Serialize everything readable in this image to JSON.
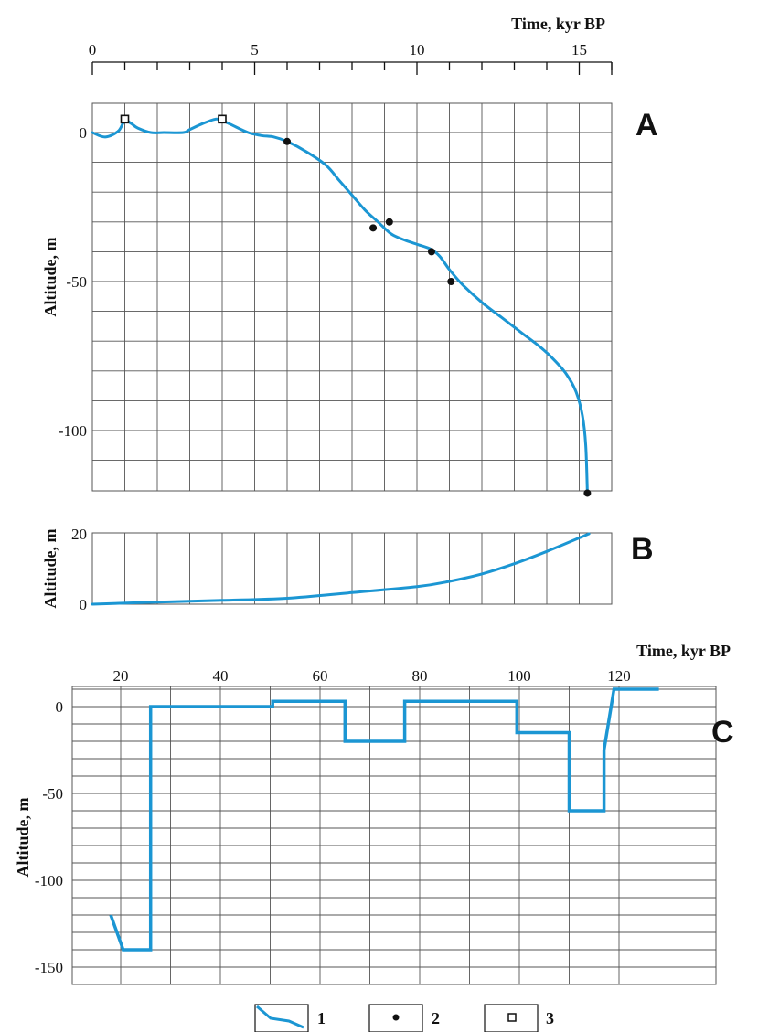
{
  "colors": {
    "curve": "#1b96d3",
    "grid": "#555555",
    "marker": "#111111"
  },
  "chart_data": [
    {
      "panel": "A",
      "type": "line",
      "xlabel": "Time, kyr BP",
      "ylabel": "Altitude, m",
      "xlim": [
        0,
        16
      ],
      "ylim": [
        -122,
        9
      ],
      "x_ticks": [
        0,
        5,
        10,
        15
      ],
      "y_ticks": [
        0,
        -50,
        -100
      ],
      "grid": true,
      "series": [
        {
          "legend_key": "1",
          "x": [
            0,
            0.4,
            0.8,
            1.0,
            1.2,
            1.4,
            1.8,
            2.2,
            2.8,
            3.0,
            3.4,
            3.8,
            4.0,
            4.3,
            4.8,
            5.2,
            5.6,
            6.0,
            6.6,
            7.2,
            7.6,
            8.0,
            8.4,
            8.8,
            9.2,
            9.6,
            10.0,
            10.4,
            10.7,
            11.0,
            11.4,
            12.0,
            12.6,
            13.2,
            13.8,
            14.2,
            14.6,
            14.9,
            15.1,
            15.2,
            15.25
          ],
          "y": [
            0,
            -1.5,
            0.5,
            4,
            3,
            1.5,
            0,
            0,
            0,
            1,
            3,
            4.5,
            4,
            2.5,
            0,
            -1,
            -1.5,
            -3,
            -6.5,
            -11,
            -16,
            -21,
            -26,
            -30,
            -34,
            -36,
            -37.5,
            -39,
            -41.5,
            -46,
            -51,
            -57,
            -62,
            -67,
            -72,
            -76,
            -81,
            -87,
            -95,
            -105,
            -121
          ]
        },
        {
          "legend_key": "2",
          "type": "scatter",
          "marker": "dot",
          "points": [
            [
              6.0,
              -3
            ],
            [
              8.65,
              -32
            ],
            [
              9.15,
              -30
            ],
            [
              10.45,
              -40
            ],
            [
              11.05,
              -50
            ],
            [
              15.25,
              -121
            ]
          ]
        },
        {
          "legend_key": "3",
          "type": "scatter",
          "marker": "open-square",
          "points": [
            [
              1.0,
              4.5
            ],
            [
              4.0,
              4.5
            ]
          ]
        }
      ],
      "y_tick_labels": [
        "0",
        "-50",
        "-100"
      ],
      "x_tick_labels": [
        "0",
        "5",
        "10",
        "15"
      ]
    },
    {
      "panel": "B",
      "type": "line",
      "xlabel": "",
      "ylabel": "Altitude, m",
      "xlim": [
        0,
        16
      ],
      "ylim": [
        0,
        21
      ],
      "y_ticks": [
        0,
        20
      ],
      "y_tick_labels": [
        "0",
        "20"
      ],
      "grid": true,
      "series": [
        {
          "legend_key": "1",
          "x": [
            0,
            2,
            4,
            6,
            8,
            10,
            11,
            12,
            13,
            14,
            15.3
          ],
          "y": [
            0,
            0.6,
            1.1,
            1.7,
            3.3,
            5.0,
            6.5,
            8.6,
            11.5,
            15.0,
            20
          ]
        }
      ]
    },
    {
      "panel": "C",
      "type": "line",
      "xlabel": "Time, kyr BP",
      "ylabel": "Altitude, m",
      "xlim": [
        15,
        128
      ],
      "ylim": [
        -158,
        12
      ],
      "x_ticks": [
        20,
        40,
        60,
        80,
        100,
        120
      ],
      "x_tick_labels": [
        "20",
        "40",
        "60",
        "80",
        "100",
        "120"
      ],
      "y_ticks": [
        0,
        -50,
        -100,
        -150
      ],
      "y_tick_labels": [
        "0",
        "-50",
        "-100",
        "-150"
      ],
      "grid": true,
      "series": [
        {
          "legend_key": "1",
          "x": [
            18,
            20.5,
            26,
            26,
            50.5,
            50.5,
            65,
            65,
            77,
            77,
            99.5,
            99.5,
            110,
            110,
            117,
            117,
            119,
            128
          ],
          "y": [
            -120,
            -140,
            -140,
            0,
            0,
            3,
            3,
            -20,
            -20,
            3,
            3,
            -15,
            -15,
            -60,
            -60,
            -25,
            10,
            10
          ]
        }
      ]
    }
  ],
  "panels": {
    "A": {
      "letter": "A",
      "xlabel": "Time, kyr BP",
      "ylabel": "Altitude, m"
    },
    "B": {
      "letter": "B",
      "ylabel": "Altitude, m"
    },
    "C": {
      "letter": "C",
      "xlabel": "Time, kyr BP",
      "ylabel": "Altitude, m"
    }
  },
  "legend": {
    "items": [
      {
        "key": "1",
        "label": "1",
        "symbol": "curve"
      },
      {
        "key": "2",
        "label": "2",
        "symbol": "dot"
      },
      {
        "key": "3",
        "label": "3",
        "symbol": "open-square"
      }
    ]
  }
}
